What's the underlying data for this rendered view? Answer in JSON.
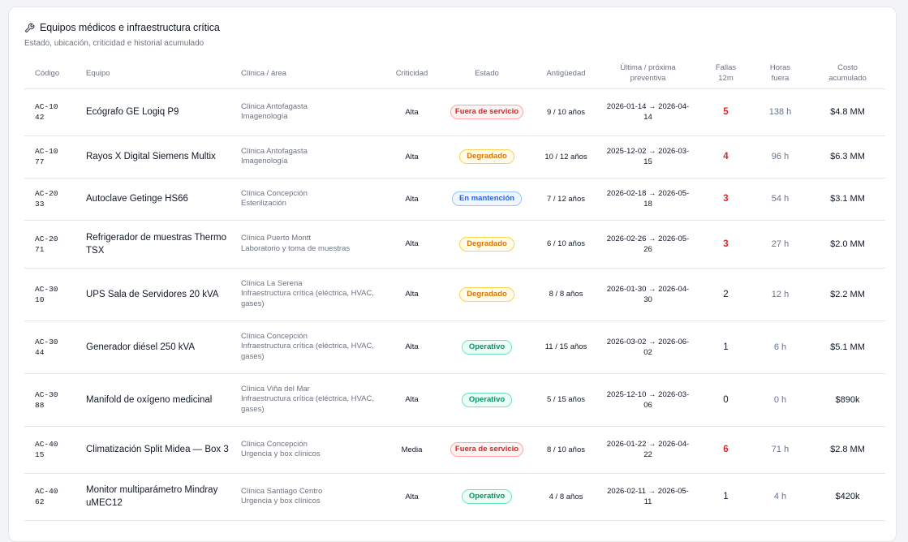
{
  "header": {
    "title": "Equipos médicos e infraestructura crítica",
    "subtitle": "Estado, ubicación, criticidad e historial acumulado"
  },
  "columns": {
    "code": "Código",
    "equipo": "Equipo",
    "clinica": "Clínica / área",
    "criticidad": "Criticidad",
    "estado": "Estado",
    "antiguedad": "Antigüedad",
    "preventiva_l1": "Última / próxima",
    "preventiva_l2": "preventiva",
    "fallas_l1": "Fallas",
    "fallas_l2": "12m",
    "horas_l1": "Horas",
    "horas_l2": "fuera",
    "costo_l1": "Costo",
    "costo_l2": "acumulado"
  },
  "status_colors": {
    "fuera_de_servicio": "#dc2626",
    "degradado": "#d97706",
    "en_mantencion": "#2563eb",
    "operativo": "#059669"
  },
  "rows": [
    {
      "code": "AC-1042",
      "equipo": "Ecógrafo GE Logiq P9",
      "clinica": "Clínica Antofagasta",
      "area": "Imagenología",
      "criticidad": "Alta",
      "estado": "Fuera de servicio",
      "estado_kind": "down",
      "antiguedad": "9 / 10 años",
      "preventiva": "2026-01-14 → 2026-04-14",
      "fallas": "5",
      "fallas_alert": true,
      "horas": "138 h",
      "costo": "$4.8 MM"
    },
    {
      "code": "AC-1077",
      "equipo": "Rayos X Digital Siemens Multix",
      "clinica": "Clínica Antofagasta",
      "area": "Imagenología",
      "criticidad": "Alta",
      "estado": "Degradado",
      "estado_kind": "degraded",
      "antiguedad": "10 / 12 años",
      "preventiva": "2025-12-02 → 2026-03-15",
      "fallas": "4",
      "fallas_alert": true,
      "horas": "96 h",
      "costo": "$6.3 MM"
    },
    {
      "code": "AC-2033",
      "equipo": "Autoclave Getinge HS66",
      "clinica": "Clínica Concepción",
      "area": "Esterilización",
      "criticidad": "Alta",
      "estado": "En mantención",
      "estado_kind": "maint",
      "antiguedad": "7 / 12 años",
      "preventiva": "2026-02-18 → 2026-05-18",
      "fallas": "3",
      "fallas_alert": true,
      "horas": "54 h",
      "costo": "$3.1 MM"
    },
    {
      "code": "AC-2071",
      "equipo": "Refrigerador de muestras Thermo TSX",
      "clinica": "Clínica Puerto Montt",
      "area": "Laboratorio y toma de muestras",
      "criticidad": "Alta",
      "estado": "Degradado",
      "estado_kind": "degraded",
      "antiguedad": "6 / 10 años",
      "preventiva": "2026-02-26 → 2026-05-26",
      "fallas": "3",
      "fallas_alert": true,
      "horas": "27 h",
      "costo": "$2.0 MM"
    },
    {
      "code": "AC-3010",
      "equipo": "UPS Sala de Servidores 20 kVA",
      "clinica": "Clínica La Serena",
      "area": "Infraestructura crítica (eléctrica, HVAC, gases)",
      "criticidad": "Alta",
      "estado": "Degradado",
      "estado_kind": "degraded",
      "antiguedad": "8 / 8 años",
      "preventiva": "2026-01-30 → 2026-04-30",
      "fallas": "2",
      "fallas_alert": false,
      "horas": "12 h",
      "costo": "$2.2 MM"
    },
    {
      "code": "AC-3044",
      "equipo": "Generador diésel 250 kVA",
      "clinica": "Clínica Concepción",
      "area": "Infraestructura crítica (eléctrica, HVAC, gases)",
      "criticidad": "Alta",
      "estado": "Operativo",
      "estado_kind": "ok",
      "antiguedad": "11 / 15 años",
      "preventiva": "2026-03-02 → 2026-06-02",
      "fallas": "1",
      "fallas_alert": false,
      "horas": "6 h",
      "costo": "$5.1 MM"
    },
    {
      "code": "AC-3088",
      "equipo": "Manifold de oxígeno medicinal",
      "clinica": "Clínica Viña del Mar",
      "area": "Infraestructura crítica (eléctrica, HVAC, gases)",
      "criticidad": "Alta",
      "estado": "Operativo",
      "estado_kind": "ok",
      "antiguedad": "5 / 15 años",
      "preventiva": "2025-12-10 → 2026-03-06",
      "fallas": "0",
      "fallas_alert": false,
      "horas": "0 h",
      "costo": "$890k"
    },
    {
      "code": "AC-4015",
      "equipo": "Climatización Split Midea — Box 3",
      "clinica": "Clínica Concepción",
      "area": "Urgencia y box clínicos",
      "criticidad": "Media",
      "estado": "Fuera de servicio",
      "estado_kind": "down",
      "antiguedad": "8 / 10 años",
      "preventiva": "2026-01-22 → 2026-04-22",
      "fallas": "6",
      "fallas_alert": true,
      "horas": "71 h",
      "costo": "$2.8 MM"
    },
    {
      "code": "AC-4062",
      "equipo": "Monitor multiparámetro Mindray uMEC12",
      "clinica": "Clínica Santiago Centro",
      "area": "Urgencia y box clínicos",
      "criticidad": "Alta",
      "estado": "Operativo",
      "estado_kind": "ok",
      "antiguedad": "4 / 8 años",
      "preventiva": "2026-02-11 → 2026-05-11",
      "fallas": "1",
      "fallas_alert": false,
      "horas": "4 h",
      "costo": "$420k"
    }
  ]
}
